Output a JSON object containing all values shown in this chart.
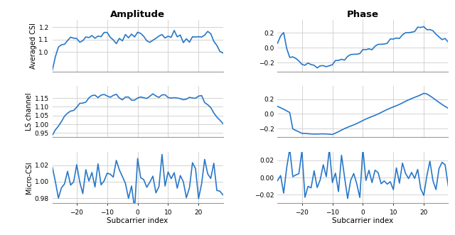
{
  "title_amplitude": "Amplitude",
  "title_phase": "Phase",
  "xlabel": "Subcarrier index",
  "ylabel_row1": "Averaged CSI",
  "ylabel_row2": "LS channel",
  "ylabel_row3": "Micro-CSI",
  "x_range": [
    -28,
    28
  ],
  "line_color": "#2878c8",
  "line_width": 1.2,
  "amp_row1_ylim": [
    0.84,
    1.26
  ],
  "amp_row1_yticks": [
    1.0,
    1.1,
    1.2
  ],
  "amp_row2_ylim": [
    0.925,
    1.22
  ],
  "amp_row2_yticks": [
    0.95,
    1.0,
    1.05,
    1.1,
    1.15
  ],
  "amp_row3_ylim": [
    0.974,
    1.036
  ],
  "amp_row3_yticks": [
    0.98,
    1.0,
    1.02
  ],
  "phase_row1_ylim": [
    -0.32,
    0.37
  ],
  "phase_row1_yticks": [
    -0.2,
    0.0,
    0.2
  ],
  "phase_row2_ylim": [
    -0.32,
    0.38
  ],
  "phase_row2_yticks": [
    -0.2,
    0.0,
    0.2
  ],
  "phase_row3_ylim": [
    -0.03,
    0.03
  ],
  "phase_row3_yticks": [
    -0.02,
    0.0,
    0.02
  ],
  "xticks": [
    -20,
    -10,
    0,
    10,
    20
  ],
  "background_color": "#ffffff",
  "grid_color": "#cccccc",
  "spine_color": "#999999"
}
